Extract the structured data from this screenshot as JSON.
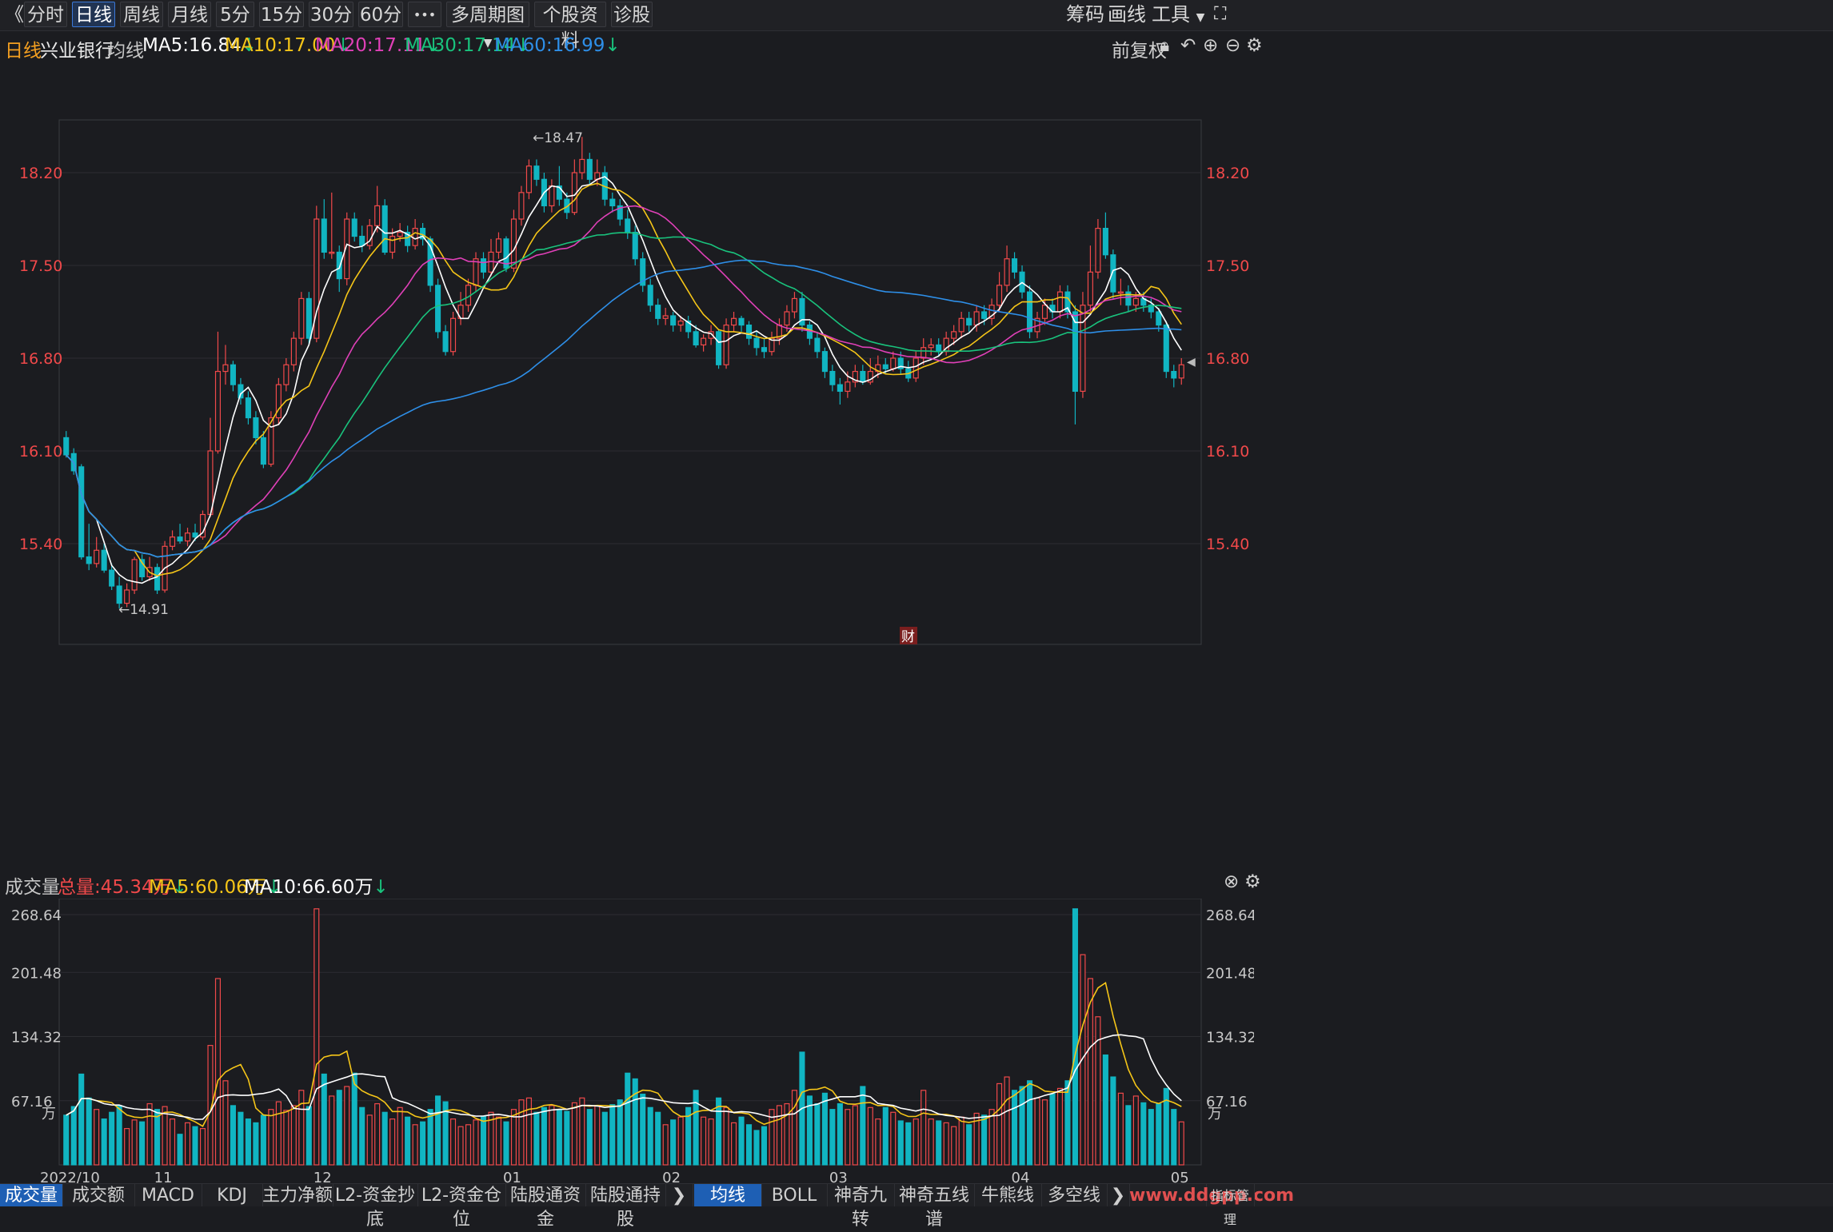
{
  "toolbar": {
    "back_glyph": "《",
    "periods": [
      "分时",
      "日线",
      "周线",
      "月线",
      "5分",
      "15分",
      "30分",
      "60分"
    ],
    "active_period": "日线",
    "more_glyph": "•••",
    "multi_period": "多周期图",
    "stock_profile": "个股资料",
    "diagnose": "诊股",
    "chips": "筹码",
    "draw": "画线",
    "tools": "工具"
  },
  "info": {
    "period": "日线",
    "stock_name": "兴业银行",
    "ma_label": "均线",
    "ma5": "MA5:16.84",
    "ma10": "MA10:17.00",
    "ma20": "MA20:17.11",
    "ma30": "MA30:17.14",
    "ma60": "MA60:16.99",
    "adjust": "前复权"
  },
  "price_axis": {
    "ticks": [
      "18.20",
      "17.50",
      "16.80",
      "16.10",
      "15.40"
    ],
    "high_label": "←18.47",
    "low_label": "←14.91",
    "fin_badge": "财"
  },
  "volume": {
    "title": "成交量",
    "total": "总量:45.34万",
    "ma5": "MA5:60.06万",
    "ma10": "MA10:66.60万",
    "ticks": [
      "268.64",
      "201.48",
      "134.32",
      "67.16"
    ],
    "unit": "万"
  },
  "dates": [
    "2022/10",
    "11",
    "12",
    "01",
    "02",
    "03",
    "04",
    "05"
  ],
  "bottom_tabs_left": [
    "成交量",
    "成交额",
    "MACD",
    "KDJ",
    "主力净额",
    "L2-资金抄底",
    "L2-资金仓位",
    "陆股通资金",
    "陆股通持股"
  ],
  "bottom_tabs_right": [
    "均线",
    "BOLL",
    "神奇九转",
    "神奇五线谱",
    "牛熊线",
    "多空线"
  ],
  "bottom_right_label": "指标管理",
  "watermark": "www.ddgpp.com",
  "colors": {
    "up": "#f0494a",
    "down": "#11b5c2",
    "ma5": "#ffffff",
    "ma10": "#f5c518",
    "ma20": "#e040b8",
    "ma30": "#19c37d",
    "ma60": "#2e8fe8",
    "price_label": "#f0494a"
  },
  "chart_data": {
    "type": "candlestick",
    "price_range": [
      14.65,
      18.75
    ],
    "volume_range": [
      0,
      268.64
    ],
    "marked_high": 18.47,
    "marked_low": 14.91,
    "candles": [
      [
        16.2,
        16.07,
        16.25,
        16.05,
        52
      ],
      [
        16.08,
        15.95,
        16.12,
        15.92,
        61
      ],
      [
        15.98,
        15.3,
        16.0,
        15.28,
        95
      ],
      [
        15.3,
        15.25,
        15.55,
        15.2,
        70
      ],
      [
        15.25,
        15.35,
        15.45,
        15.22,
        58
      ],
      [
        15.35,
        15.2,
        15.4,
        15.18,
        48
      ],
      [
        15.2,
        15.08,
        15.25,
        15.05,
        55
      ],
      [
        15.08,
        14.95,
        15.15,
        14.91,
        62
      ],
      [
        14.95,
        15.05,
        15.1,
        14.92,
        38
      ],
      [
        15.05,
        15.28,
        15.3,
        15.02,
        47
      ],
      [
        15.28,
        15.15,
        15.32,
        15.12,
        45
      ],
      [
        15.15,
        15.22,
        15.3,
        15.12,
        64
      ],
      [
        15.22,
        15.05,
        15.25,
        15.02,
        58
      ],
      [
        15.05,
        15.38,
        15.42,
        15.03,
        61
      ],
      [
        15.38,
        15.45,
        15.5,
        15.35,
        48
      ],
      [
        15.45,
        15.42,
        15.55,
        15.4,
        32
      ],
      [
        15.42,
        15.48,
        15.52,
        15.38,
        44
      ],
      [
        15.48,
        15.45,
        15.55,
        15.42,
        40
      ],
      [
        15.45,
        15.62,
        15.65,
        15.43,
        38
      ],
      [
        15.62,
        16.1,
        16.35,
        15.6,
        125
      ],
      [
        16.1,
        16.7,
        17.0,
        16.08,
        195
      ],
      [
        16.7,
        16.75,
        16.9,
        16.6,
        88
      ],
      [
        16.75,
        16.6,
        16.78,
        16.55,
        62
      ],
      [
        16.6,
        16.5,
        16.65,
        16.45,
        55
      ],
      [
        16.5,
        16.35,
        16.55,
        16.3,
        48
      ],
      [
        16.35,
        16.2,
        16.4,
        16.15,
        44
      ],
      [
        16.2,
        16.0,
        16.25,
        15.97,
        52
      ],
      [
        16.0,
        16.35,
        16.4,
        15.98,
        58
      ],
      [
        16.35,
        16.6,
        16.65,
        16.3,
        66
      ],
      [
        16.6,
        16.75,
        16.8,
        16.55,
        57
      ],
      [
        16.75,
        16.95,
        17.0,
        16.7,
        62
      ],
      [
        16.95,
        17.25,
        17.3,
        16.9,
        78
      ],
      [
        17.25,
        16.95,
        17.3,
        16.9,
        61
      ],
      [
        16.95,
        17.85,
        17.95,
        16.92,
        268
      ],
      [
        17.85,
        17.6,
        18.0,
        17.55,
        95
      ],
      [
        17.6,
        17.6,
        18.05,
        17.55,
        72
      ],
      [
        17.6,
        17.4,
        17.65,
        17.3,
        78
      ],
      [
        17.4,
        17.85,
        17.9,
        17.35,
        82
      ],
      [
        17.85,
        17.72,
        17.9,
        17.68,
        96
      ],
      [
        17.72,
        17.65,
        17.8,
        17.6,
        60
      ],
      [
        17.65,
        17.8,
        17.85,
        17.62,
        52
      ],
      [
        17.8,
        17.95,
        18.1,
        17.75,
        64
      ],
      [
        17.95,
        17.6,
        18.0,
        17.58,
        55
      ],
      [
        17.6,
        17.72,
        17.78,
        17.55,
        48
      ],
      [
        17.72,
        17.75,
        17.82,
        17.68,
        60
      ],
      [
        17.75,
        17.65,
        17.8,
        17.6,
        50
      ],
      [
        17.65,
        17.78,
        17.85,
        17.62,
        42
      ],
      [
        17.78,
        17.7,
        17.82,
        17.65,
        45
      ],
      [
        17.7,
        17.35,
        17.72,
        17.3,
        58
      ],
      [
        17.35,
        17.0,
        17.4,
        16.95,
        72
      ],
      [
        17.0,
        16.85,
        17.05,
        16.82,
        66
      ],
      [
        16.85,
        17.1,
        17.15,
        16.82,
        48
      ],
      [
        17.1,
        17.2,
        17.3,
        17.05,
        40
      ],
      [
        17.2,
        17.35,
        17.4,
        17.15,
        42
      ],
      [
        17.35,
        17.55,
        17.6,
        17.3,
        47
      ],
      [
        17.55,
        17.45,
        17.6,
        17.4,
        51
      ],
      [
        17.45,
        17.6,
        17.7,
        17.42,
        55
      ],
      [
        17.6,
        17.7,
        17.75,
        17.55,
        50
      ],
      [
        17.7,
        17.48,
        17.72,
        17.45,
        45
      ],
      [
        17.48,
        17.85,
        17.92,
        17.45,
        58
      ],
      [
        17.85,
        18.05,
        18.1,
        17.8,
        68
      ],
      [
        18.05,
        18.25,
        18.3,
        18.0,
        70
      ],
      [
        18.25,
        18.15,
        18.3,
        18.1,
        55
      ],
      [
        18.15,
        17.95,
        18.2,
        17.9,
        60
      ],
      [
        17.95,
        18.1,
        18.15,
        17.9,
        62
      ],
      [
        18.1,
        18.0,
        18.25,
        17.95,
        58
      ],
      [
        18.0,
        17.9,
        18.05,
        17.85,
        56
      ],
      [
        17.9,
        18.2,
        18.3,
        17.88,
        65
      ],
      [
        18.2,
        18.3,
        18.47,
        18.15,
        70
      ],
      [
        18.3,
        18.15,
        18.35,
        18.1,
        58
      ],
      [
        18.15,
        18.2,
        18.3,
        18.1,
        62
      ],
      [
        18.2,
        18.0,
        18.25,
        17.95,
        55
      ],
      [
        18.0,
        17.95,
        18.05,
        17.9,
        63
      ],
      [
        17.95,
        17.85,
        18.0,
        17.8,
        68
      ],
      [
        17.85,
        17.75,
        17.92,
        17.7,
        96
      ],
      [
        17.75,
        17.55,
        17.8,
        17.5,
        90
      ],
      [
        17.55,
        17.35,
        17.6,
        17.3,
        74
      ],
      [
        17.35,
        17.2,
        17.4,
        17.15,
        60
      ],
      [
        17.2,
        17.1,
        17.25,
        17.05,
        55
      ],
      [
        17.1,
        17.12,
        17.18,
        17.05,
        42
      ],
      [
        17.12,
        17.05,
        17.15,
        17.0,
        47
      ],
      [
        17.05,
        17.08,
        17.12,
        17.0,
        50
      ],
      [
        17.08,
        17.0,
        17.12,
        16.95,
        60
      ],
      [
        17.0,
        16.9,
        17.05,
        16.88,
        78
      ],
      [
        16.9,
        16.95,
        16.98,
        16.85,
        50
      ],
      [
        16.95,
        17.0,
        17.05,
        16.9,
        48
      ],
      [
        17.0,
        16.75,
        17.02,
        16.72,
        70
      ],
      [
        16.75,
        17.05,
        17.1,
        16.72,
        60
      ],
      [
        17.05,
        17.1,
        17.15,
        17.0,
        44
      ],
      [
        17.1,
        17.05,
        17.12,
        17.0,
        50
      ],
      [
        17.05,
        16.95,
        17.08,
        16.9,
        42
      ],
      [
        16.95,
        16.88,
        17.0,
        16.82,
        36
      ],
      [
        16.88,
        16.85,
        16.95,
        16.8,
        40
      ],
      [
        16.85,
        16.95,
        17.0,
        16.82,
        58
      ],
      [
        16.95,
        17.05,
        17.1,
        16.9,
        62
      ],
      [
        17.05,
        17.15,
        17.2,
        17.0,
        64
      ],
      [
        17.15,
        17.25,
        17.3,
        17.1,
        78
      ],
      [
        17.25,
        17.05,
        17.3,
        17.0,
        118
      ],
      [
        17.05,
        16.95,
        17.08,
        16.9,
        72
      ],
      [
        16.95,
        16.85,
        17.0,
        16.8,
        64
      ],
      [
        16.85,
        16.7,
        16.88,
        16.65,
        75
      ],
      [
        16.7,
        16.6,
        16.75,
        16.55,
        58
      ],
      [
        16.6,
        16.55,
        16.65,
        16.45,
        64
      ],
      [
        16.55,
        16.62,
        16.7,
        16.5,
        58
      ],
      [
        16.62,
        16.7,
        16.75,
        16.58,
        62
      ],
      [
        16.7,
        16.62,
        16.75,
        16.6,
        82
      ],
      [
        16.62,
        16.7,
        16.8,
        16.6,
        60
      ],
      [
        16.7,
        16.75,
        16.82,
        16.65,
        48
      ],
      [
        16.75,
        16.72,
        16.8,
        16.68,
        60
      ],
      [
        16.72,
        16.8,
        16.85,
        16.7,
        55
      ],
      [
        16.8,
        16.72,
        16.85,
        16.68,
        46
      ],
      [
        16.72,
        16.65,
        16.78,
        16.62,
        44
      ],
      [
        16.65,
        16.8,
        16.85,
        16.62,
        48
      ],
      [
        16.8,
        16.88,
        16.95,
        16.75,
        78
      ],
      [
        16.88,
        16.9,
        16.95,
        16.82,
        48
      ],
      [
        16.9,
        16.85,
        16.95,
        16.82,
        46
      ],
      [
        16.85,
        16.95,
        17.0,
        16.82,
        44
      ],
      [
        16.95,
        17.0,
        17.05,
        16.9,
        40
      ],
      [
        17.0,
        17.1,
        17.15,
        16.95,
        50
      ],
      [
        17.1,
        17.05,
        17.15,
        17.0,
        42
      ],
      [
        17.05,
        17.15,
        17.2,
        17.0,
        54
      ],
      [
        17.15,
        17.1,
        17.2,
        17.05,
        52
      ],
      [
        17.1,
        17.2,
        17.25,
        17.05,
        58
      ],
      [
        17.2,
        17.35,
        17.45,
        17.15,
        85
      ],
      [
        17.35,
        17.55,
        17.65,
        17.3,
        92
      ],
      [
        17.55,
        17.45,
        17.6,
        17.4,
        78
      ],
      [
        17.45,
        17.3,
        17.5,
        17.25,
        82
      ],
      [
        17.3,
        17.0,
        17.35,
        16.95,
        88
      ],
      [
        17.0,
        17.1,
        17.15,
        16.95,
        70
      ],
      [
        17.1,
        17.2,
        17.25,
        17.05,
        68
      ],
      [
        17.2,
        17.15,
        17.25,
        17.1,
        74
      ],
      [
        17.15,
        17.3,
        17.35,
        17.1,
        80
      ],
      [
        17.3,
        17.15,
        17.35,
        17.1,
        88
      ],
      [
        17.15,
        16.55,
        17.2,
        16.3,
        268
      ],
      [
        16.55,
        17.2,
        17.3,
        16.5,
        220
      ],
      [
        17.2,
        17.45,
        17.65,
        17.15,
        195
      ],
      [
        17.45,
        17.78,
        17.85,
        17.4,
        155
      ],
      [
        17.78,
        17.58,
        17.9,
        17.55,
        115
      ],
      [
        17.58,
        17.3,
        17.62,
        17.25,
        92
      ],
      [
        17.3,
        17.3,
        17.4,
        17.2,
        75
      ],
      [
        17.3,
        17.2,
        17.35,
        17.15,
        62
      ],
      [
        17.2,
        17.25,
        17.3,
        17.15,
        72
      ],
      [
        17.25,
        17.2,
        17.3,
        17.15,
        65
      ],
      [
        17.2,
        17.15,
        17.25,
        17.1,
        58
      ],
      [
        17.15,
        17.05,
        17.18,
        17.0,
        64
      ],
      [
        17.05,
        16.7,
        17.08,
        16.65,
        80
      ],
      [
        16.7,
        16.65,
        16.75,
        16.58,
        58
      ],
      [
        16.65,
        16.75,
        16.8,
        16.6,
        45
      ]
    ]
  }
}
